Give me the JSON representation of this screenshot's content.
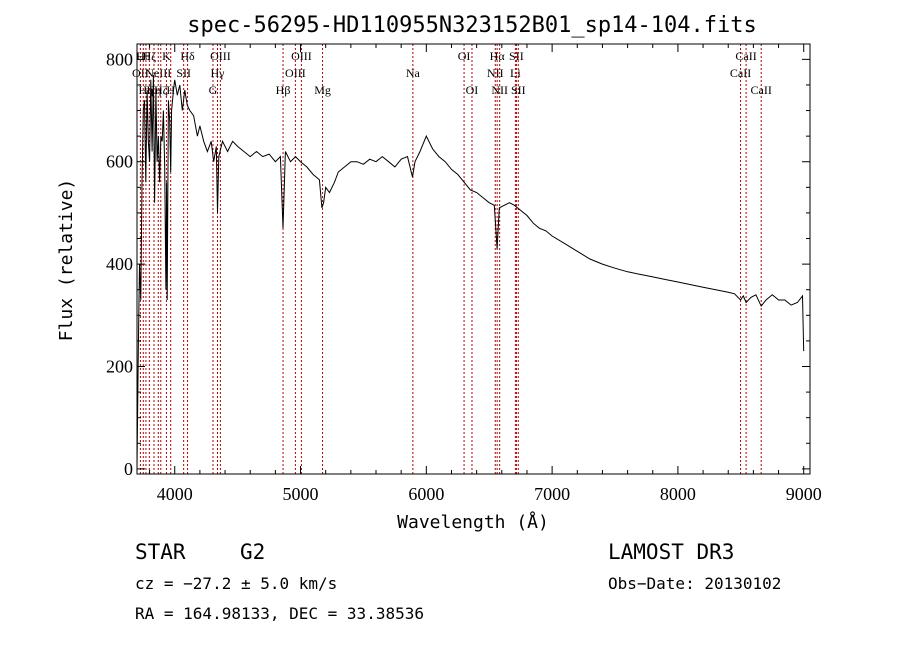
{
  "chart_data": {
    "type": "line",
    "title": "spec-56295-HD110955N323152B01_sp14-104.fits",
    "xlabel": "Wavelength (Å)",
    "ylabel": "Flux (relative)",
    "xlim": [
      3700,
      9050
    ],
    "ylim": [
      -10,
      830
    ],
    "xticks": [
      4000,
      5000,
      6000,
      7000,
      8000,
      9000
    ],
    "yticks": [
      0,
      200,
      400,
      600,
      800
    ],
    "series": [
      {
        "name": "flux",
        "x": [
          3700,
          3710,
          3720,
          3730,
          3740,
          3750,
          3760,
          3770,
          3780,
          3790,
          3800,
          3810,
          3820,
          3830,
          3840,
          3850,
          3860,
          3870,
          3880,
          3890,
          3900,
          3910,
          3920,
          3930,
          3935,
          3940,
          3950,
          3960,
          3968,
          3975,
          3990,
          4000,
          4020,
          4040,
          4060,
          4080,
          4100,
          4120,
          4150,
          4180,
          4200,
          4230,
          4260,
          4290,
          4310,
          4330,
          4340,
          4350,
          4380,
          4420,
          4460,
          4500,
          4550,
          4600,
          4650,
          4700,
          4750,
          4800,
          4840,
          4861,
          4880,
          4920,
          4960,
          5000,
          5050,
          5100,
          5150,
          5170,
          5183,
          5200,
          5230,
          5270,
          5300,
          5350,
          5400,
          5450,
          5500,
          5550,
          5600,
          5650,
          5700,
          5750,
          5800,
          5850,
          5890,
          5910,
          5950,
          6000,
          6050,
          6100,
          6150,
          6200,
          6250,
          6300,
          6350,
          6400,
          6450,
          6500,
          6540,
          6563,
          6580,
          6620,
          6660,
          6700,
          6750,
          6800,
          6850,
          6900,
          6950,
          7000,
          7100,
          7200,
          7300,
          7400,
          7500,
          7600,
          7700,
          7800,
          7900,
          8000,
          8100,
          8200,
          8300,
          8400,
          8450,
          8498,
          8520,
          8542,
          8580,
          8620,
          8662,
          8700,
          8750,
          8800,
          8850,
          8900,
          8950,
          8990,
          9000
        ],
        "y": [
          0,
          230,
          400,
          330,
          560,
          700,
          720,
          560,
          740,
          640,
          600,
          760,
          620,
          770,
          520,
          740,
          600,
          650,
          560,
          650,
          640,
          700,
          590,
          350,
          560,
          330,
          720,
          680,
          580,
          700,
          740,
          760,
          730,
          750,
          700,
          740,
          710,
          700,
          690,
          650,
          670,
          640,
          620,
          640,
          600,
          630,
          500,
          610,
          640,
          620,
          640,
          630,
          620,
          610,
          620,
          610,
          615,
          600,
          610,
          470,
          620,
          600,
          610,
          600,
          590,
          575,
          565,
          510,
          520,
          550,
          540,
          560,
          580,
          590,
          600,
          600,
          595,
          605,
          600,
          610,
          600,
          590,
          605,
          610,
          570,
          600,
          620,
          650,
          625,
          610,
          600,
          585,
          575,
          560,
          545,
          540,
          530,
          520,
          515,
          430,
          510,
          515,
          520,
          515,
          505,
          495,
          480,
          470,
          465,
          455,
          440,
          425,
          410,
          400,
          392,
          385,
          380,
          375,
          370,
          365,
          360,
          355,
          350,
          345,
          342,
          330,
          338,
          325,
          335,
          340,
          318,
          330,
          340,
          330,
          330,
          320,
          325,
          338,
          230
        ]
      }
    ],
    "line_markers": [
      {
        "wavelength": 3727,
        "label": "OII",
        "row": 2
      },
      {
        "wavelength": 3750,
        "label": "Hθ",
        "row": 1
      },
      {
        "wavelength": 3771,
        "label": "Hη",
        "row": 3
      },
      {
        "wavelength": 3798,
        "label": "Hζ",
        "row": 1
      },
      {
        "wavelength": 3835,
        "label": "Hη",
        "row": 3
      },
      {
        "wavelength": 3869,
        "label": "NeIII",
        "row": 2
      },
      {
        "wavelength": 3889,
        "label": "Hζ",
        "row": 3
      },
      {
        "wavelength": 3934,
        "label": "K",
        "row": 1
      },
      {
        "wavelength": 3968,
        "label": "H",
        "row": 3
      },
      {
        "wavelength": 4071,
        "label": "SII",
        "row": 2
      },
      {
        "wavelength": 4102,
        "label": "Hδ",
        "row": 1
      },
      {
        "wavelength": 4304,
        "label": "G",
        "row": 3
      },
      {
        "wavelength": 4340,
        "label": "Hγ",
        "row": 2
      },
      {
        "wavelength": 4363,
        "label": "OIII",
        "row": 1
      },
      {
        "wavelength": 4861,
        "label": "Hβ",
        "row": 3
      },
      {
        "wavelength": 4959,
        "label": "OIII",
        "row": 2
      },
      {
        "wavelength": 5007,
        "label": "OIII",
        "row": 1
      },
      {
        "wavelength": 5175,
        "label": "Mg",
        "row": 3
      },
      {
        "wavelength": 5893,
        "label": "Na",
        "row": 2
      },
      {
        "wavelength": 6300,
        "label": "OI",
        "row": 1
      },
      {
        "wavelength": 6363,
        "label": "OI",
        "row": 3
      },
      {
        "wavelength": 6548,
        "label": "NII",
        "row": 2
      },
      {
        "wavelength": 6563,
        "label": "Hα",
        "row": 1
      },
      {
        "wavelength": 6583,
        "label": "NII",
        "row": 3
      },
      {
        "wavelength": 6708,
        "label": "Li",
        "row": 2
      },
      {
        "wavelength": 6716,
        "label": "SII",
        "row": 1
      },
      {
        "wavelength": 6731,
        "label": "SII",
        "row": 3
      },
      {
        "wavelength": 8498,
        "label": "CaII",
        "row": 2
      },
      {
        "wavelength": 8542,
        "label": "CaII",
        "row": 1
      },
      {
        "wavelength": 8662,
        "label": "CaII",
        "row": 3
      }
    ]
  },
  "info": {
    "object_class": "STAR",
    "subclass": "G2",
    "survey": "LAMOST DR3",
    "redshift": "cz = −27.2 ± 5.0 km/s",
    "obs_date": "Obs−Date: 20130102",
    "coords": "RA = 164.98133, DEC =  33.38536"
  },
  "colors": {
    "spectrum": "#000000",
    "marker": "#b00000",
    "axis": "#000000"
  }
}
